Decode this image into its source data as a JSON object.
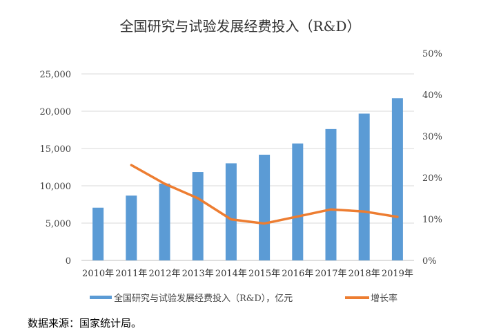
{
  "chart_data": {
    "type": "bar+line",
    "title": "全国研究与试验发展经费投入（R&D）",
    "categories": [
      "2010年",
      "2011年",
      "2012年",
      "2013年",
      "2014年",
      "2015年",
      "2016年",
      "2017年",
      "2018年",
      "2019年"
    ],
    "series": [
      {
        "name": "全国研究与试验发展经费投入（R&D），亿元",
        "type": "bar",
        "axis": "left",
        "color": "#5B9BD5",
        "values": [
          7063,
          8687,
          10298,
          11847,
          13016,
          14170,
          15677,
          17606,
          19678,
          21737
        ]
      },
      {
        "name": "增长率",
        "type": "line",
        "axis": "right",
        "color": "#ED7D31",
        "values": [
          null,
          23.0,
          18.5,
          15.0,
          9.9,
          8.9,
          10.6,
          12.3,
          11.8,
          10.5
        ]
      }
    ],
    "left_axis": {
      "range": [
        0,
        25000
      ],
      "ticks": [
        "0",
        "5,000",
        "10,000",
        "15,000",
        "20,000",
        "25,000"
      ],
      "tick_values": [
        0,
        5000,
        10000,
        15000,
        20000,
        25000
      ]
    },
    "right_axis": {
      "range": [
        0,
        50
      ],
      "unit": "%",
      "ticks": [
        "0%",
        "10%",
        "20%",
        "30%",
        "40%",
        "50%"
      ],
      "tick_values": [
        0,
        10,
        20,
        30,
        40,
        50
      ]
    },
    "grid": true,
    "legend_placement": "bottom"
  },
  "source": "数据来源：国家统计局。"
}
